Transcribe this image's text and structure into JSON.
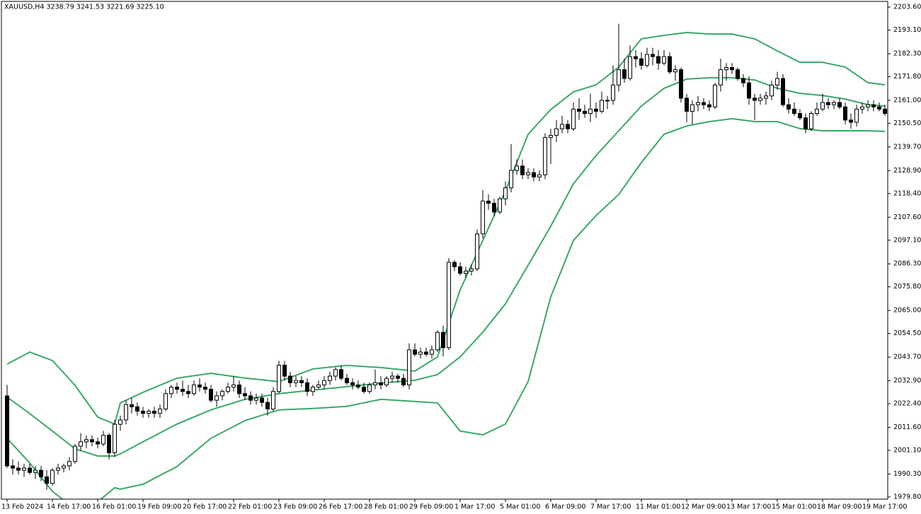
{
  "chart_data": {
    "type": "candlestick",
    "title": "XAUUSD,H4  3238.79 3241.53 3221.69 3225.10",
    "up_color": "#ffffff",
    "down_color": "#000000",
    "wick_color": "#000000",
    "xlim": [
      -1,
      155.5
    ],
    "ylim": [
      1978.8,
      2206.2
    ],
    "yticks": [
      {
        "value": 2203.6,
        "label": "2203.60"
      },
      {
        "value": 2193.1,
        "label": "2193.10"
      },
      {
        "value": 2182.3,
        "label": "2182.30"
      },
      {
        "value": 2171.8,
        "label": "2171.80"
      },
      {
        "value": 2161.0,
        "label": "2161.00"
      },
      {
        "value": 2150.5,
        "label": "2150.50"
      },
      {
        "value": 2139.7,
        "label": "2139.70"
      },
      {
        "value": 2128.9,
        "label": "2128.90"
      },
      {
        "value": 2118.4,
        "label": "2118.40"
      },
      {
        "value": 2107.6,
        "label": "2107.60"
      },
      {
        "value": 2097.1,
        "label": "2097.10"
      },
      {
        "value": 2086.3,
        "label": "2086.30"
      },
      {
        "value": 2075.8,
        "label": "2075.80"
      },
      {
        "value": 2065.0,
        "label": "2065.00"
      },
      {
        "value": 2054.5,
        "label": "2054.50"
      },
      {
        "value": 2043.7,
        "label": "2043.70"
      },
      {
        "value": 2032.9,
        "label": "2032.90"
      },
      {
        "value": 2022.4,
        "label": "2022.40"
      },
      {
        "value": 2011.6,
        "label": "2011.60"
      },
      {
        "value": 2001.1,
        "label": "2001.10"
      },
      {
        "value": 1990.3,
        "label": "1990.30"
      },
      {
        "value": 1979.8,
        "label": "1979.80"
      }
    ],
    "xticks": [
      {
        "value": 0,
        "label": "13 Feb 2024"
      },
      {
        "value": 8,
        "label": "14 Feb 17:00"
      },
      {
        "value": 16,
        "label": "16 Feb 01:00"
      },
      {
        "value": 24,
        "label": "19 Feb 09:00"
      },
      {
        "value": 32,
        "label": "20 Feb 17:00"
      },
      {
        "value": 40,
        "label": "22 Feb 01:00"
      },
      {
        "value": 48,
        "label": "23 Feb 09:00"
      },
      {
        "value": 56,
        "label": "26 Feb 17:00"
      },
      {
        "value": 64,
        "label": "28 Feb 01:00"
      },
      {
        "value": 72,
        "label": "29 Feb 09:00"
      },
      {
        "value": 80,
        "label": "1 Mar 17:00"
      },
      {
        "value": 88,
        "label": "5 Mar 01:00"
      },
      {
        "value": 96,
        "label": "6 Mar 09:00"
      },
      {
        "value": 104,
        "label": "7 Mar 17:00"
      },
      {
        "value": 112,
        "label": "11 Mar 01:00"
      },
      {
        "value": 120,
        "label": "12 Mar 09:00"
      },
      {
        "value": 128,
        "label": "13 Mar 17:00"
      },
      {
        "value": 136,
        "label": "15 Mar 01:00"
      },
      {
        "value": 144,
        "label": "18 Mar 09:00"
      },
      {
        "value": 152,
        "label": "19 Mar 17:00"
      }
    ],
    "candles": [
      [
        2026,
        2031,
        1993,
        1994
      ],
      [
        1994,
        1997,
        1990,
        1993
      ],
      [
        1993,
        1996,
        1990,
        1992
      ],
      [
        1992,
        1995,
        1989,
        1993
      ],
      [
        1993,
        1995,
        1990,
        1991
      ],
      [
        1991,
        1994,
        1988,
        1992
      ],
      [
        1992,
        1994,
        1987,
        1989
      ],
      [
        1989,
        1992,
        1983,
        1986
      ],
      [
        1986,
        1993,
        1985,
        1992
      ],
      [
        1992,
        1995,
        1990,
        1993
      ],
      [
        1993,
        1995,
        1991,
        1994
      ],
      [
        1994,
        1998,
        1992,
        1996
      ],
      [
        1996,
        2004,
        1995,
        2003
      ],
      [
        2003,
        2009,
        2001,
        2005
      ],
      [
        2005,
        2008,
        2002,
        2006
      ],
      [
        2006,
        2008,
        2003,
        2005
      ],
      [
        2005,
        2007,
        2002,
        2004
      ],
      [
        2004,
        2010,
        2003,
        2008
      ],
      [
        2008,
        2009,
        1997,
        2000
      ],
      [
        2000,
        2015,
        1998,
        2013
      ],
      [
        2013,
        2017,
        2010,
        2015
      ],
      [
        2015,
        2024,
        2013,
        2022
      ],
      [
        2022,
        2025,
        2018,
        2021
      ],
      [
        2021,
        2023,
        2017,
        2019
      ],
      [
        2019,
        2021,
        2016,
        2018
      ],
      [
        2018,
        2020,
        2016,
        2019
      ],
      [
        2019,
        2021,
        2016,
        2018
      ],
      [
        2018,
        2022,
        2016,
        2020
      ],
      [
        2020,
        2029,
        2019,
        2027
      ],
      [
        2027,
        2031,
        2025,
        2030
      ],
      [
        2030,
        2032,
        2027,
        2029
      ],
      [
        2029,
        2033,
        2026,
        2028
      ],
      [
        2028,
        2031,
        2025,
        2027
      ],
      [
        2027,
        2033,
        2026,
        2031
      ],
      [
        2031,
        2034,
        2028,
        2030
      ],
      [
        2030,
        2032,
        2027,
        2029
      ],
      [
        2029,
        2031,
        2023,
        2024
      ],
      [
        2024,
        2028,
        2021,
        2026
      ],
      [
        2026,
        2029,
        2024,
        2028
      ],
      [
        2028,
        2032,
        2027,
        2030
      ],
      [
        2030,
        2035,
        2028,
        2031
      ],
      [
        2031,
        2033,
        2025,
        2027
      ],
      [
        2027,
        2030,
        2024,
        2026
      ],
      [
        2026,
        2028,
        2022,
        2024
      ],
      [
        2024,
        2027,
        2022,
        2025
      ],
      [
        2025,
        2027,
        2021,
        2023
      ],
      [
        2023,
        2025,
        2017,
        2020
      ],
      [
        2020,
        2030,
        2019,
        2028
      ],
      [
        2028,
        2042,
        2027,
        2040
      ],
      [
        2040,
        2042,
        2033,
        2035
      ],
      [
        2035,
        2037,
        2030,
        2032
      ],
      [
        2032,
        2035,
        2030,
        2033
      ],
      [
        2033,
        2035,
        2030,
        2032
      ],
      [
        2032,
        2034,
        2026,
        2028
      ],
      [
        2028,
        2031,
        2026,
        2030
      ],
      [
        2030,
        2033,
        2029,
        2031
      ],
      [
        2031,
        2035,
        2029,
        2033
      ],
      [
        2033,
        2037,
        2031,
        2035
      ],
      [
        2035,
        2039,
        2033,
        2038
      ],
      [
        2038,
        2040,
        2033,
        2034
      ],
      [
        2034,
        2036,
        2031,
        2032
      ],
      [
        2032,
        2034,
        2029,
        2031
      ],
      [
        2031,
        2033,
        2029,
        2030
      ],
      [
        2030,
        2032,
        2027,
        2028
      ],
      [
        2028,
        2032,
        2027,
        2031
      ],
      [
        2031,
        2038,
        2029,
        2032
      ],
      [
        2032,
        2035,
        2029,
        2031
      ],
      [
        2031,
        2035,
        2030,
        2034
      ],
      [
        2034,
        2037,
        2032,
        2035
      ],
      [
        2035,
        2036,
        2032,
        2034
      ],
      [
        2034,
        2036,
        2030,
        2031
      ],
      [
        2031,
        2050,
        2029,
        2047
      ],
      [
        2047,
        2050,
        2044,
        2045
      ],
      [
        2045,
        2048,
        2043,
        2046
      ],
      [
        2046,
        2048,
        2044,
        2045
      ],
      [
        2045,
        2049,
        2043,
        2047
      ],
      [
        2047,
        2056,
        2046,
        2055
      ],
      [
        2055,
        2058,
        2044,
        2048
      ],
      [
        2048,
        2089,
        2047,
        2087
      ],
      [
        2087,
        2088,
        2083,
        2085
      ],
      [
        2085,
        2087,
        2081,
        2082
      ],
      [
        2082,
        2085,
        2080,
        2083
      ],
      [
        2083,
        2086,
        2081,
        2084
      ],
      [
        2084,
        2102,
        2083,
        2100
      ],
      [
        2100,
        2120,
        2098,
        2115
      ],
      [
        2115,
        2118,
        2111,
        2114
      ],
      [
        2114,
        2116,
        2108,
        2110
      ],
      [
        2110,
        2117,
        2109,
        2116
      ],
      [
        2116,
        2124,
        2113,
        2121
      ],
      [
        2121,
        2141,
        2119,
        2129
      ],
      [
        2129,
        2134,
        2127,
        2131
      ],
      [
        2131,
        2134,
        2125,
        2127
      ],
      [
        2127,
        2130,
        2125,
        2128
      ],
      [
        2128,
        2130,
        2124,
        2126
      ],
      [
        2126,
        2129,
        2124,
        2127
      ],
      [
        2127,
        2146,
        2125,
        2144
      ],
      [
        2144,
        2148,
        2132,
        2145
      ],
      [
        2145,
        2152,
        2142,
        2148
      ],
      [
        2148,
        2154,
        2146,
        2150
      ],
      [
        2150,
        2152,
        2146,
        2148
      ],
      [
        2148,
        2160,
        2147,
        2157
      ],
      [
        2157,
        2162,
        2152,
        2156
      ],
      [
        2156,
        2159,
        2153,
        2155
      ],
      [
        2155,
        2164,
        2151,
        2157
      ],
      [
        2157,
        2160,
        2153,
        2156
      ],
      [
        2156,
        2165,
        2155,
        2161
      ],
      [
        2161,
        2163,
        2157,
        2161
      ],
      [
        2161,
        2177,
        2159,
        2168
      ],
      [
        2168,
        2196,
        2165,
        2175
      ],
      [
        2175,
        2180,
        2169,
        2171
      ],
      [
        2171,
        2186,
        2170,
        2181
      ],
      [
        2181,
        2184,
        2176,
        2180
      ],
      [
        2180,
        2183,
        2175,
        2177
      ],
      [
        2177,
        2185,
        2176,
        2182
      ],
      [
        2182,
        2185,
        2177,
        2181
      ],
      [
        2181,
        2184,
        2175,
        2178
      ],
      [
        2178,
        2184,
        2177,
        2181
      ],
      [
        2181,
        2183,
        2173,
        2174
      ],
      [
        2174,
        2177,
        2170,
        2175
      ],
      [
        2175,
        2176,
        2160,
        2162
      ],
      [
        2162,
        2164,
        2151,
        2156
      ],
      [
        2156,
        2161,
        2150,
        2159
      ],
      [
        2159,
        2163,
        2156,
        2160
      ],
      [
        2160,
        2162,
        2157,
        2159
      ],
      [
        2159,
        2161,
        2156,
        2158
      ],
      [
        2158,
        2169,
        2157,
        2168
      ],
      [
        2168,
        2180,
        2165,
        2175
      ],
      [
        2175,
        2178,
        2170,
        2176
      ],
      [
        2176,
        2178,
        2173,
        2175
      ],
      [
        2175,
        2176,
        2170,
        2171
      ],
      [
        2171,
        2173,
        2167,
        2169
      ],
      [
        2169,
        2172,
        2159,
        2162
      ],
      [
        2162,
        2164,
        2152,
        2161
      ],
      [
        2161,
        2164,
        2159,
        2162
      ],
      [
        2162,
        2165,
        2159,
        2163
      ],
      [
        2163,
        2170,
        2161,
        2168
      ],
      [
        2168,
        2174,
        2166,
        2171
      ],
      [
        2171,
        2173,
        2158,
        2159
      ],
      [
        2159,
        2162,
        2155,
        2157
      ],
      [
        2157,
        2160,
        2154,
        2155
      ],
      [
        2155,
        2157,
        2152,
        2153
      ],
      [
        2153,
        2155,
        2146,
        2148
      ],
      [
        2148,
        2156,
        2147,
        2155
      ],
      [
        2155,
        2160,
        2154,
        2157
      ],
      [
        2157,
        2164,
        2156,
        2160
      ],
      [
        2160,
        2162,
        2157,
        2159
      ],
      [
        2159,
        2161,
        2157,
        2160
      ],
      [
        2160,
        2162,
        2157,
        2158
      ],
      [
        2158,
        2160,
        2150,
        2152
      ],
      [
        2152,
        2155,
        2148,
        2151
      ],
      [
        2151,
        2159,
        2149,
        2157
      ],
      [
        2157,
        2160,
        2155,
        2158
      ],
      [
        2158,
        2161,
        2156,
        2159
      ],
      [
        2159,
        2161,
        2156,
        2158
      ],
      [
        2158,
        2160,
        2156,
        2157
      ],
      [
        2157,
        2159,
        2154,
        2155
      ]
    ],
    "series": [
      {
        "color": "#3aa868",
        "x": [
          0,
          4,
          8,
          12,
          16,
          19,
          20,
          24,
          30,
          36,
          42,
          48,
          54,
          60,
          66,
          72,
          76,
          80,
          84,
          88,
          92,
          96,
          100,
          104,
          108,
          112,
          116,
          120,
          124,
          128,
          132,
          136,
          140,
          144,
          148,
          152,
          155
        ],
        "values": [
          2040.5,
          2046.0,
          2042.1,
          2030.8,
          2016.3,
          2013.1,
          2022.8,
          2027.6,
          2034.1,
          2036.3,
          2034.1,
          2032.5,
          2038.3,
          2039.9,
          2038.9,
          2037.3,
          2043.8,
          2074.4,
          2097.0,
          2119.6,
          2145.5,
          2156.8,
          2164.9,
          2168.1,
          2176.2,
          2189.1,
          2190.7,
          2192.0,
          2191.3,
          2191.3,
          2189.1,
          2183.6,
          2178.4,
          2178.4,
          2176.2,
          2169.1,
          2168.1
        ]
      },
      {
        "color": "#3aa868",
        "x": [
          0,
          4,
          8,
          12,
          16,
          19,
          20,
          24,
          30,
          36,
          42,
          48,
          54,
          60,
          66,
          72,
          76,
          80,
          84,
          88,
          92,
          96,
          100,
          104,
          108,
          112,
          116,
          120,
          124,
          128,
          132,
          136,
          140,
          144,
          148,
          152,
          155
        ],
        "values": [
          2025.4,
          2017.9,
          2009.9,
          2001.8,
          1998.5,
          1998.5,
          1999.5,
          2005.0,
          2013.1,
          2019.6,
          2024.4,
          2027.0,
          2028.6,
          2030.2,
          2031.8,
          2033.1,
          2035.7,
          2043.8,
          2055.1,
          2068.0,
          2085.7,
          2103.5,
          2122.9,
          2135.8,
          2147.1,
          2158.4,
          2166.5,
          2170.7,
          2171.3,
          2171.3,
          2170.3,
          2166.5,
          2164.2,
          2163.2,
          2161.6,
          2159.0,
          2158.4
        ]
      },
      {
        "color": "#3aa868",
        "x": [
          0,
          4,
          8,
          12,
          16,
          19,
          20,
          24,
          30,
          36,
          42,
          48,
          54,
          60,
          66,
          72,
          76,
          80,
          84,
          88,
          92,
          96,
          100,
          104,
          108,
          112,
          116,
          120,
          124,
          128,
          132,
          136,
          140,
          144,
          148,
          152,
          155
        ],
        "values": [
          2006.6,
          1995.3,
          1982.4,
          1974.3,
          1977.6,
          1984.0,
          1983.4,
          1985.6,
          1993.7,
          2006.6,
          2014.7,
          2019.6,
          2020.2,
          2021.2,
          2024.4,
          2023.4,
          2022.8,
          2009.9,
          2008.2,
          2013.1,
          2032.5,
          2071.2,
          2097.0,
          2108.4,
          2118.0,
          2132.6,
          2145.5,
          2149.3,
          2151.3,
          2152.6,
          2151.3,
          2151.3,
          2148.1,
          2147.1,
          2147.1,
          2147.1,
          2146.8
        ]
      }
    ]
  }
}
